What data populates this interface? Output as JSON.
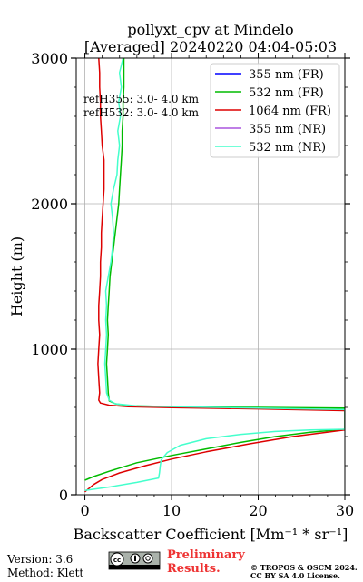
{
  "chart_data": {
    "type": "line",
    "title": [
      "pollyxt_cpv at Mindelo",
      "[Averaged] 20240220 04:04-05:03"
    ],
    "xlabel": "Backscatter Coefficient [Mm⁻¹ * sr⁻¹]",
    "ylabel": "Height (m)",
    "xlim": [
      -1,
      30
    ],
    "ylim": [
      0,
      3000
    ],
    "xticks": [
      0,
      10,
      20,
      30
    ],
    "yticks": [
      0,
      1000,
      2000,
      3000
    ],
    "grid": true,
    "legend_position": "top-right",
    "series": [
      {
        "name": "355 nm (FR)",
        "color": "#0000ff",
        "points": []
      },
      {
        "name": "532 nm (FR)",
        "color": "#00bb00",
        "points": [
          [
            0.0,
            100
          ],
          [
            1.0,
            125
          ],
          [
            3.0,
            165
          ],
          [
            6.0,
            220
          ],
          [
            10.0,
            270
          ],
          [
            14.0,
            315
          ],
          [
            18.0,
            360
          ],
          [
            22.0,
            400
          ],
          [
            26.0,
            430
          ],
          [
            30.0,
            450
          ],
          [
            30.0,
            595
          ],
          [
            20.0,
            600
          ],
          [
            10.0,
            605
          ],
          [
            5.0,
            612
          ],
          [
            3.5,
            625
          ],
          [
            2.8,
            645
          ],
          [
            2.7,
            700
          ],
          [
            2.6,
            800
          ],
          [
            2.5,
            900
          ],
          [
            2.6,
            1000
          ],
          [
            2.7,
            1100
          ],
          [
            2.6,
            1200
          ],
          [
            2.7,
            1300
          ],
          [
            2.8,
            1400
          ],
          [
            2.9,
            1500
          ],
          [
            3.1,
            1600
          ],
          [
            3.3,
            1700
          ],
          [
            3.5,
            1800
          ],
          [
            3.7,
            1900
          ],
          [
            3.9,
            2000
          ],
          [
            4.0,
            2100
          ],
          [
            4.1,
            2200
          ],
          [
            4.2,
            2300
          ],
          [
            4.3,
            2400
          ],
          [
            4.3,
            2500
          ],
          [
            4.4,
            2600
          ],
          [
            4.4,
            2700
          ],
          [
            4.5,
            2800
          ],
          [
            4.5,
            2900
          ],
          [
            4.5,
            3000
          ]
        ]
      },
      {
        "name": "1064 nm (FR)",
        "color": "#dd0000",
        "points": [
          [
            0.0,
            20
          ],
          [
            1.0,
            70
          ],
          [
            2.0,
            105
          ],
          [
            4.0,
            150
          ],
          [
            7.0,
            200
          ],
          [
            10.0,
            245
          ],
          [
            14.0,
            295
          ],
          [
            19.0,
            350
          ],
          [
            24.0,
            400
          ],
          [
            30.0,
            445
          ],
          [
            30.0,
            578
          ],
          [
            20.0,
            590
          ],
          [
            10.0,
            598
          ],
          [
            5.0,
            605
          ],
          [
            2.8,
            615
          ],
          [
            1.8,
            630
          ],
          [
            1.6,
            650
          ],
          [
            1.7,
            700
          ],
          [
            1.6,
            800
          ],
          [
            1.5,
            900
          ],
          [
            1.6,
            1000
          ],
          [
            1.7,
            1100
          ],
          [
            1.6,
            1200
          ],
          [
            1.6,
            1300
          ],
          [
            1.7,
            1400
          ],
          [
            1.8,
            1500
          ],
          [
            1.8,
            1600
          ],
          [
            1.9,
            1700
          ],
          [
            1.9,
            1800
          ],
          [
            2.0,
            1900
          ],
          [
            2.1,
            2000
          ],
          [
            2.2,
            2100
          ],
          [
            2.2,
            2200
          ],
          [
            2.2,
            2300
          ],
          [
            2.0,
            2400
          ],
          [
            1.9,
            2500
          ],
          [
            1.8,
            2600
          ],
          [
            1.8,
            2700
          ],
          [
            1.7,
            2800
          ],
          [
            1.7,
            2900
          ],
          [
            1.6,
            3000
          ]
        ]
      },
      {
        "name": "355 nm (NR)",
        "color": "#aa55dd",
        "points": []
      },
      {
        "name": "532 nm (NR)",
        "color": "#44ffcc",
        "points": [
          [
            0.0,
            30
          ],
          [
            3.0,
            55
          ],
          [
            6.0,
            85
          ],
          [
            8.5,
            115
          ],
          [
            8.6,
            150
          ],
          [
            8.7,
            200
          ],
          [
            8.8,
            240
          ],
          [
            9.5,
            290
          ],
          [
            11.0,
            340
          ],
          [
            14.0,
            385
          ],
          [
            18.0,
            415
          ],
          [
            22.0,
            435
          ],
          [
            26.0,
            445
          ],
          [
            30.0,
            450
          ],
          [
            30.0,
            585
          ],
          [
            15.0,
            600
          ],
          [
            6.0,
            610
          ],
          [
            3.5,
            625
          ],
          [
            2.8,
            650
          ],
          [
            2.5,
            700
          ],
          [
            2.4,
            800
          ],
          [
            2.3,
            900
          ],
          [
            2.4,
            1000
          ],
          [
            2.5,
            1100
          ],
          [
            2.4,
            1200
          ],
          [
            2.5,
            1300
          ],
          [
            2.4,
            1400
          ],
          [
            2.7,
            1500
          ],
          [
            3.0,
            1600
          ],
          [
            3.2,
            1700
          ],
          [
            3.3,
            1800
          ],
          [
            3.2,
            1900
          ],
          [
            3.0,
            2000
          ],
          [
            3.3,
            2100
          ],
          [
            3.7,
            2200
          ],
          [
            3.8,
            2300
          ],
          [
            4.0,
            2400
          ],
          [
            3.8,
            2500
          ],
          [
            4.1,
            2600
          ],
          [
            3.9,
            2700
          ],
          [
            4.2,
            2800
          ],
          [
            4.0,
            2900
          ],
          [
            4.4,
            3000
          ]
        ]
      }
    ],
    "annotations": [
      "refH355:  3.0- 4.0 km",
      "refH532:  3.0- 4.0 km"
    ]
  },
  "footer": {
    "version": "Version: 3.6",
    "method": "Method: Klett",
    "license_badge": "cc by sa",
    "preliminary_line1": "Preliminary",
    "preliminary_line2": "Results.",
    "copyright_line1": "© TROPOS & OSCM 2024.",
    "copyright_line2": "CC BY SA 4.0 License."
  },
  "colors": {
    "preliminary": "#ee3333",
    "grid": "#b0b0b0"
  }
}
